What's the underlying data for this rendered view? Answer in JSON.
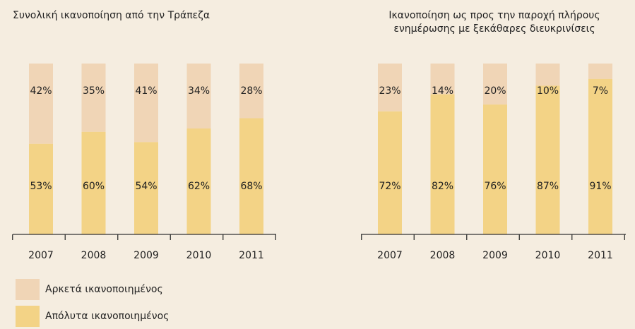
{
  "colors": {
    "background": "#f5ede0",
    "somewhat_satisfied": "#f0d5b6",
    "fully_satisfied": "#f3d386",
    "axis": "#333333",
    "text": "#222222"
  },
  "legend": {
    "somewhat_satisfied": "Αρκετά ικανοποιημένος",
    "fully_satisfied": "Απόλυτα ικανοποιημένος"
  },
  "chart_data": [
    {
      "type": "bar",
      "stacked": true,
      "title": "Συνολική ικανοποίηση από την Τράπεζα",
      "categories": [
        "2007",
        "2008",
        "2009",
        "2010",
        "2011"
      ],
      "series": [
        {
          "name": "Απόλυτα ικανοποιημένος",
          "values": [
            53,
            60,
            54,
            62,
            68
          ],
          "labels": [
            "53%",
            "60%",
            "54%",
            "62%",
            "68%"
          ]
        },
        {
          "name": "Αρκετά ικανοποιημένος",
          "values": [
            42,
            35,
            41,
            34,
            28
          ],
          "labels": [
            "42%",
            "35%",
            "41%",
            "34%",
            "28%"
          ]
        }
      ],
      "ylim": [
        0,
        100
      ],
      "grid": false,
      "legend_position": "bottom-left"
    },
    {
      "type": "bar",
      "stacked": true,
      "title": "Ικανοποίηση ως προς την παροχή πλήρους ενημέρωσης με ξεκάθαρες διευκρινίσεις",
      "title_lines": [
        "Ικανοποίηση ως προς την παροχή πλήρους",
        "ενημέρωσης με ξεκάθαρες διευκρινίσεις"
      ],
      "categories": [
        "2007",
        "2008",
        "2009",
        "2010",
        "2011"
      ],
      "series": [
        {
          "name": "Απόλυτα ικανοποιημένος",
          "values": [
            72,
            82,
            76,
            87,
            91
          ],
          "labels": [
            "72%",
            "82%",
            "76%",
            "87%",
            "91%"
          ]
        },
        {
          "name": "Αρκετά ικανοποιημένος",
          "values": [
            23,
            14,
            20,
            10,
            7
          ],
          "labels": [
            "23%",
            "14%",
            "20%",
            "10%",
            "7%"
          ]
        }
      ],
      "ylim": [
        0,
        100
      ],
      "grid": false
    }
  ]
}
